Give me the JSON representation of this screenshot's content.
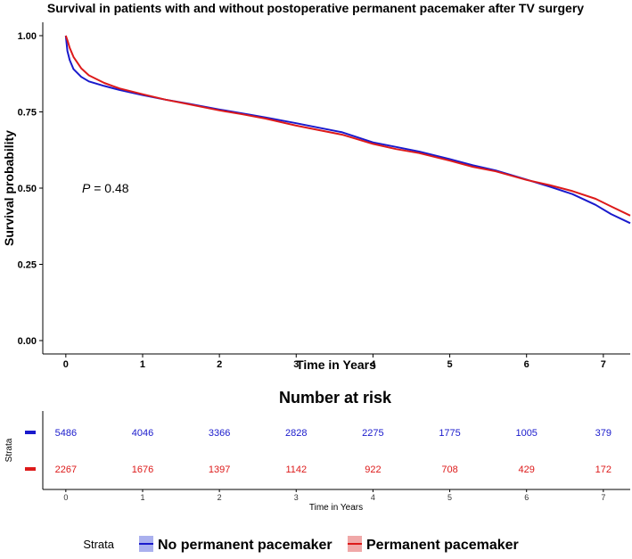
{
  "chart_data": {
    "type": "line",
    "title": "Survival in patients with and without postoperative permanent pacemaker after TV surgery",
    "xlabel": "Time in Years",
    "ylabel": "Survival probability",
    "xlim": [
      -0.3,
      7.35
    ],
    "ylim": [
      0.0,
      1.0
    ],
    "x_ticks": [
      "0",
      "1",
      "2",
      "3",
      "4",
      "5",
      "6",
      "7"
    ],
    "y_ticks": [
      "0.00",
      "0.25",
      "0.50",
      "0.75",
      "1.00"
    ],
    "annotation": {
      "label": "P",
      "text": " = 0.48"
    },
    "series": [
      {
        "name": "No permanent pacemaker",
        "color": "#1a1acc",
        "x": [
          0,
          0.02,
          0.05,
          0.1,
          0.2,
          0.3,
          0.5,
          0.7,
          1.0,
          1.3,
          1.6,
          2.0,
          2.3,
          2.6,
          3.0,
          3.3,
          3.6,
          4.0,
          4.3,
          4.6,
          5.0,
          5.3,
          5.6,
          6.0,
          6.3,
          6.6,
          6.9,
          7.1,
          7.35
        ],
        "y": [
          1.0,
          0.95,
          0.92,
          0.89,
          0.865,
          0.85,
          0.835,
          0.822,
          0.805,
          0.79,
          0.777,
          0.758,
          0.745,
          0.732,
          0.713,
          0.698,
          0.683,
          0.65,
          0.635,
          0.62,
          0.595,
          0.575,
          0.558,
          0.528,
          0.505,
          0.48,
          0.445,
          0.415,
          0.385
        ]
      },
      {
        "name": "Permanent pacemaker",
        "color": "#dd1a1a",
        "x": [
          0,
          0.02,
          0.05,
          0.1,
          0.2,
          0.3,
          0.5,
          0.7,
          1.0,
          1.3,
          1.6,
          2.0,
          2.3,
          2.6,
          3.0,
          3.3,
          3.6,
          4.0,
          4.3,
          4.6,
          5.0,
          5.3,
          5.6,
          6.0,
          6.3,
          6.6,
          6.9,
          7.1,
          7.35
        ],
        "y": [
          1.0,
          0.985,
          0.96,
          0.93,
          0.893,
          0.87,
          0.845,
          0.827,
          0.808,
          0.79,
          0.775,
          0.755,
          0.742,
          0.728,
          0.705,
          0.69,
          0.675,
          0.645,
          0.628,
          0.615,
          0.59,
          0.57,
          0.555,
          0.527,
          0.51,
          0.49,
          0.465,
          0.44,
          0.41
        ]
      }
    ]
  },
  "risk_table": {
    "title": "Number at risk",
    "ylabel": "Strata",
    "xlabel": "Time in Years",
    "x_ticks": [
      "0",
      "1",
      "2",
      "3",
      "4",
      "5",
      "6",
      "7"
    ],
    "rows": [
      {
        "name": "No permanent pacemaker",
        "color": "#1a1acc",
        "values": [
          "5486",
          "4046",
          "3366",
          "2828",
          "2275",
          "1775",
          "1005",
          "379"
        ]
      },
      {
        "name": "Permanent pacemaker",
        "color": "#dd1a1a",
        "values": [
          "2267",
          "1676",
          "1397",
          "1142",
          "922",
          "708",
          "429",
          "172"
        ]
      }
    ]
  },
  "legend": {
    "title": "Strata",
    "items": [
      {
        "label": "No permanent pacemaker",
        "color": "#1a1acc",
        "fill": "#aab0ee"
      },
      {
        "label": "Permanent pacemaker",
        "color": "#dd1a1a",
        "fill": "#f0a8a8"
      }
    ]
  }
}
